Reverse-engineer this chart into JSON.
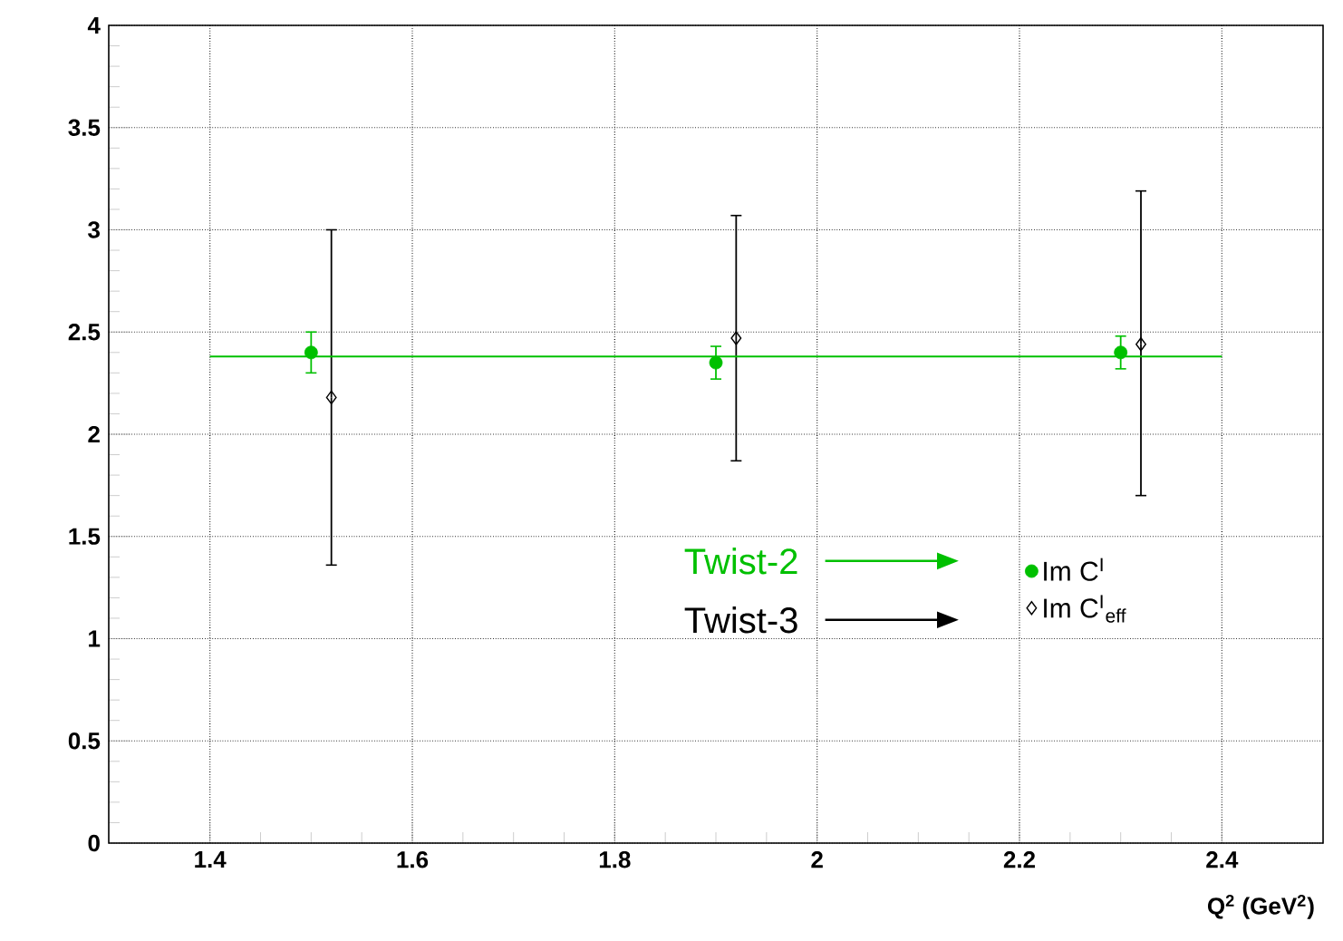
{
  "chart_data": {
    "type": "scatter",
    "xlabel": "Q$^{2}$ (GeV$^{2}$)",
    "xlim": [
      1.3,
      2.5
    ],
    "ylim": [
      0,
      4
    ],
    "xticks": [
      1.4,
      1.6,
      1.8,
      2,
      2.2,
      2.4
    ],
    "yticks": [
      0,
      0.5,
      1,
      1.5,
      2,
      2.5,
      3,
      3.5,
      4
    ],
    "grid": true,
    "legend": "bottom right",
    "series": [
      {
        "name": "Im C$^{I}$",
        "marker": "circle",
        "color": "#00c000",
        "x": [
          1.5,
          1.9,
          2.3
        ],
        "values": [
          2.4,
          2.35,
          2.4
        ],
        "errors": [
          0.1,
          0.08,
          0.08
        ]
      },
      {
        "name": "Im C$^{I}$$_{eff}$",
        "marker": "diamond",
        "color": "#000000",
        "x": [
          1.52,
          1.92,
          2.32
        ],
        "values": [
          2.18,
          2.47,
          2.44
        ],
        "errors": [
          [
            1.36,
            3.0
          ],
          [
            1.87,
            3.07
          ],
          [
            1.7,
            3.19
          ]
        ]
      },
      {
        "type": "line",
        "marker": "none",
        "color": "#00c000",
        "x": [
          1.4,
          2.4
        ],
        "values": [
          2.38,
          2.38
        ]
      }
    ],
    "annotations": [
      "Twist-2",
      "Twist-3"
    ]
  }
}
